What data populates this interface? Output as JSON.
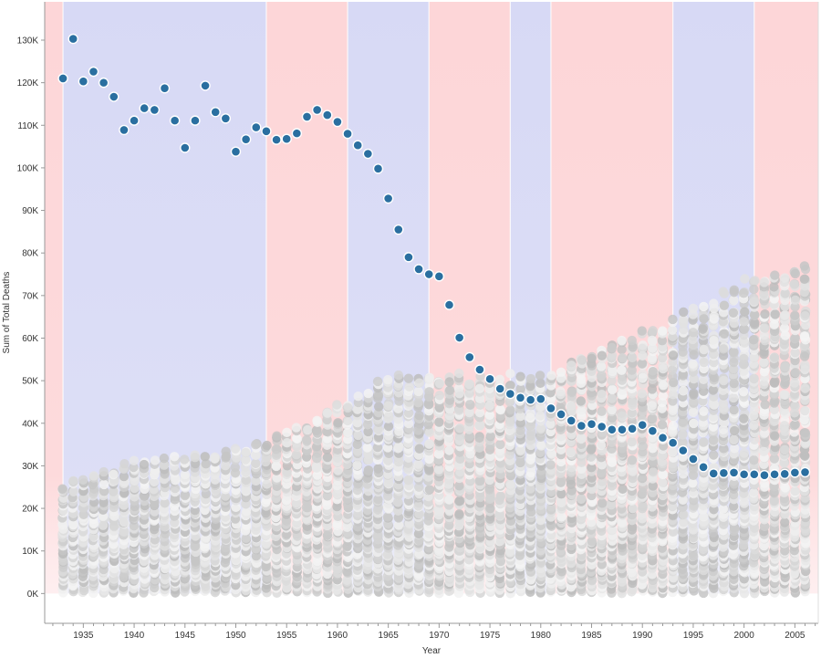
{
  "chart_data": {
    "type": "scatter",
    "xlabel": "Year",
    "ylabel": "Sum of Total Deaths",
    "xlim": [
      1931.2,
      2007.3
    ],
    "ylim": [
      -7000,
      139000
    ],
    "x_ticks": [
      1935,
      1940,
      1945,
      1950,
      1955,
      1960,
      1965,
      1970,
      1975,
      1980,
      1985,
      1990,
      1995,
      2000,
      2005
    ],
    "x_tick_labels": [
      "1935",
      "1940",
      "1945",
      "1950",
      "1955",
      "1960",
      "1965",
      "1970",
      "1975",
      "1980",
      "1985",
      "1990",
      "1995",
      "2000",
      "2005"
    ],
    "y_ticks": [
      0,
      10000,
      20000,
      30000,
      40000,
      50000,
      60000,
      70000,
      80000,
      90000,
      100000,
      110000,
      120000,
      130000
    ],
    "y_tick_labels": [
      "0K",
      "10K",
      "20K",
      "30K",
      "40K",
      "50K",
      "60K",
      "70K",
      "80K",
      "90K",
      "100K",
      "110K",
      "120K",
      "130K"
    ],
    "grid": false,
    "legend": "none",
    "background_bands": [
      {
        "start": 1931.2,
        "end": 1933,
        "party": "republican"
      },
      {
        "start": 1933,
        "end": 1953,
        "party": "democrat"
      },
      {
        "start": 1953,
        "end": 1961,
        "party": "republican"
      },
      {
        "start": 1961,
        "end": 1969,
        "party": "democrat"
      },
      {
        "start": 1969,
        "end": 1977,
        "party": "republican"
      },
      {
        "start": 1977,
        "end": 1981,
        "party": "democrat"
      },
      {
        "start": 1981,
        "end": 1993,
        "party": "republican"
      },
      {
        "start": 1993,
        "end": 2001,
        "party": "democrat"
      },
      {
        "start": 2001,
        "end": 2007.3,
        "party": "republican"
      }
    ],
    "highlight_series": {
      "color": "#2a6fa0",
      "x": [
        1933,
        1934,
        1935,
        1936,
        1937,
        1938,
        1939,
        1940,
        1941,
        1942,
        1943,
        1944,
        1945,
        1946,
        1947,
        1948,
        1949,
        1950,
        1951,
        1952,
        1953,
        1954,
        1955,
        1956,
        1957,
        1958,
        1959,
        1960,
        1961,
        1962,
        1963,
        1964,
        1965,
        1966,
        1967,
        1968,
        1969,
        1970,
        1971,
        1972,
        1973,
        1974,
        1975,
        1976,
        1977,
        1978,
        1979,
        1980,
        1981,
        1982,
        1983,
        1984,
        1985,
        1986,
        1987,
        1988,
        1989,
        1990,
        1991,
        1992,
        1993,
        1994,
        1995,
        1996,
        1997,
        1998,
        1999,
        2000,
        2001,
        2002,
        2003,
        2004,
        2005,
        2006
      ],
      "y": [
        121000,
        130300,
        120300,
        122600,
        120000,
        116700,
        108900,
        111100,
        114000,
        113600,
        118700,
        111100,
        104700,
        111100,
        119300,
        113100,
        111600,
        103800,
        106700,
        109500,
        108600,
        106600,
        106800,
        108100,
        112000,
        113600,
        112400,
        110800,
        108000,
        105300,
        103300,
        99800,
        92800,
        85500,
        79000,
        76200,
        75000,
        74500,
        67800,
        60100,
        55500,
        52600,
        50400,
        48100,
        46900,
        46000,
        45500,
        45700,
        43500,
        42100,
        40600,
        39400,
        39800,
        39200,
        38500,
        38500,
        38700,
        39600,
        38200,
        36600,
        35400,
        33600,
        31600,
        29700,
        28200,
        28300,
        28400,
        28000,
        28000,
        27800,
        28000,
        28100,
        28400,
        28500
      ]
    },
    "background_cloud": {
      "color_range": [
        "#b8b8b8",
        "#f2f2f2"
      ],
      "upper_envelope": {
        "x": [
          1933,
          1940,
          1945,
          1950,
          1955,
          1960,
          1965,
          1970,
          1975,
          1980,
          1985,
          1990,
          1995,
          2000,
          2006
        ],
        "y": [
          26500,
          31500,
          33000,
          34500,
          38500,
          45000,
          51500,
          52500,
          52000,
          52000,
          58500,
          62500,
          68000,
          74500,
          78000
        ]
      }
    }
  }
}
